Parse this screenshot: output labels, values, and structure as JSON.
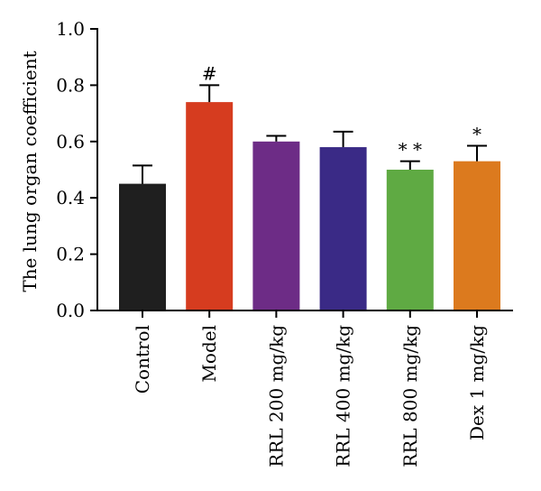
{
  "chart_data": {
    "type": "bar",
    "title": "",
    "xlabel": "",
    "ylabel": "The lung organ coefficient",
    "ylim": [
      0,
      1.0
    ],
    "yticks": [
      0.0,
      0.2,
      0.4,
      0.6,
      0.8,
      1.0
    ],
    "ytick_labels": [
      "0.0",
      "0.2",
      "0.4",
      "0.6",
      "0.8",
      "1.0"
    ],
    "categories": [
      "Control",
      "Model",
      "RRL 200 mg/kg",
      "RRL 400 mg/kg",
      "RRL 800 mg/kg",
      "Dex 1 mg/kg"
    ],
    "values": [
      0.45,
      0.74,
      0.6,
      0.58,
      0.5,
      0.53
    ],
    "errors": [
      0.065,
      0.06,
      0.02,
      0.055,
      0.03,
      0.055
    ],
    "colors": [
      "#1f1f1f",
      "#d63c1f",
      "#6d2c86",
      "#3a2a86",
      "#5faa43",
      "#dc7a1e"
    ],
    "annotations": [
      "",
      "#",
      "",
      "",
      "* *",
      "*"
    ],
    "grid": false,
    "legend": "none"
  }
}
